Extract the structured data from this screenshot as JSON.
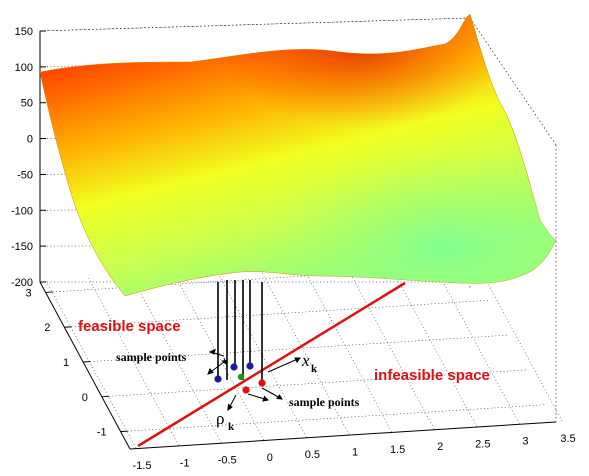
{
  "chart_data": {
    "type": "surface",
    "title": "",
    "xlabel": "",
    "ylabel": "",
    "zlabel": "",
    "x_ticks": [
      "-1.5",
      "-1",
      "-0.5",
      "0",
      "0.5",
      "1",
      "1.5",
      "2",
      "2.5",
      "3",
      "3.5"
    ],
    "y_ticks": [
      "-1",
      "0",
      "1",
      "2",
      "3"
    ],
    "z_ticks": [
      "150",
      "100",
      "50",
      "0",
      "-50",
      "-100",
      "-150",
      "-200"
    ],
    "xlim": [
      -1.5,
      3.5
    ],
    "ylim": [
      -1,
      3
    ],
    "zlim": [
      -200,
      150
    ],
    "grid": true,
    "colormap": [
      "#ff0000",
      "#ff8000",
      "#ffff00",
      "#c0ff60",
      "#80ff80"
    ],
    "constraint_line_color": "#e01010",
    "annotations": {
      "feasible": "feasible space",
      "infeasible": "infeasible space",
      "sample_points_upper": "sample points",
      "sample_points_lower": "sample points",
      "x_symbol": "x",
      "x_subscript": "k",
      "rho_symbol": "ρ",
      "rho_subscript": "k"
    },
    "marker_colors": {
      "feasible": "#1a1aa0",
      "infeasible": "#e01010",
      "center": "#1a9a1a"
    }
  }
}
